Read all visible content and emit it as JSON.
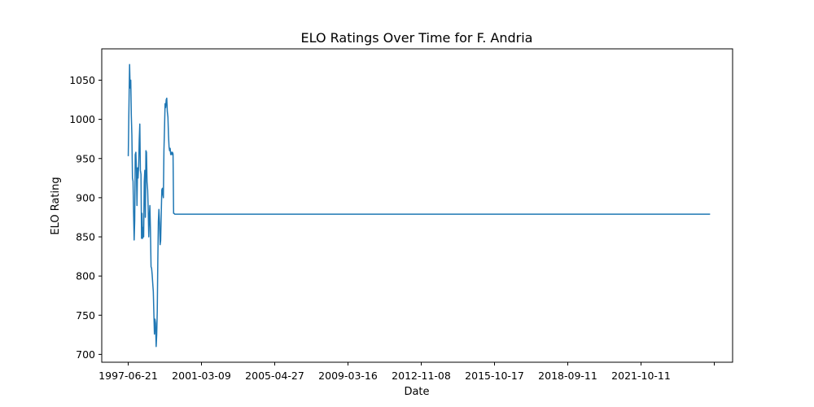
{
  "chart_data": {
    "type": "line",
    "title": "ELO Ratings Over Time for F. Andria",
    "xlabel": "Date",
    "ylabel": "ELO Rating",
    "color": "#1f77b4",
    "grid": false,
    "legend": "none",
    "xlim": [
      "1996-03-01",
      "2027-04-01"
    ],
    "ylim": [
      690,
      1090
    ],
    "x_ticks": [
      "1997-06-21",
      "2001-03-09",
      "2005-04-27",
      "2009-03-16",
      "2012-11-08",
      "2015-10-17",
      "2018-09-11",
      "2021-10-11",
      ""
    ],
    "y_ticks": [
      700,
      750,
      800,
      850,
      900,
      950,
      1000,
      1050
    ],
    "series": [
      {
        "x": [
          "1997-06-21",
          "1997-07-01",
          "1997-07-08",
          "1997-07-15",
          "1997-07-25",
          "1997-08-05",
          "1997-08-15",
          "1997-08-25",
          "1997-09-05",
          "1997-09-15",
          "1997-09-25",
          "1997-10-05",
          "1997-10-15",
          "1997-10-25",
          "1997-11-05",
          "1997-11-15",
          "1997-11-25",
          "1997-12-05",
          "1997-12-15",
          "1997-12-25",
          "1998-01-05",
          "1998-01-15",
          "1998-01-25",
          "1998-02-05",
          "1998-02-15",
          "1998-02-25",
          "1998-03-05",
          "1998-03-15",
          "1998-03-25",
          "1998-04-05",
          "1998-04-15",
          "1998-04-25",
          "1998-05-05",
          "1998-05-15",
          "1998-05-25",
          "1998-06-05",
          "1998-06-15",
          "1998-06-25",
          "1998-07-05",
          "1998-07-15",
          "1998-07-25",
          "1998-08-05",
          "1998-08-15",
          "1998-08-25",
          "1998-09-05",
          "1998-09-15",
          "1998-09-25",
          "1998-10-05",
          "1998-10-15",
          "1998-10-25",
          "1998-11-05",
          "1998-11-15",
          "1998-11-25",
          "1998-12-05",
          "1998-12-15",
          "1998-12-25",
          "1999-01-05",
          "1999-01-15",
          "1999-01-25",
          "1999-02-05",
          "1999-02-15",
          "1999-02-25",
          "1999-03-05",
          "1999-03-15",
          "1999-03-25",
          "1999-04-05",
          "1999-04-15",
          "1999-04-25",
          "1999-05-05",
          "1999-05-15",
          "1999-05-25",
          "1999-06-05",
          "1999-06-15",
          "1999-06-25",
          "1999-07-05",
          "1999-07-15",
          "1999-07-25",
          "1999-08-05",
          "1999-08-15",
          "1999-08-25",
          "1999-09-05",
          "1999-09-15",
          "1999-09-25",
          "1999-10-05",
          "1999-10-15",
          "1999-10-25",
          "1999-11-05",
          "1999-11-15",
          "1999-11-25",
          "1999-12-05",
          "1999-12-15",
          "1999-12-25",
          "2000-01-05",
          "2000-01-15",
          "2000-01-25",
          "2000-02-05",
          "2000-02-15",
          "2000-02-25",
          "2000-03-05",
          "2000-03-15",
          "2000-03-25",
          "2000-04-05",
          "2000-04-15",
          "2000-04-25",
          "2000-05-05",
          "2000-05-15",
          "2000-05-25",
          "2000-06-05",
          "2000-06-15",
          "2000-06-25",
          "2000-07-05",
          "2000-07-15",
          "2000-07-25",
          "2000-08-05",
          "2000-08-15",
          "2000-08-25",
          "2000-09-05",
          "2000-09-15",
          "2000-09-25",
          "2026-02-20"
        ],
        "y": [
          953,
          1003,
          1038,
          1070,
          1040,
          1050,
          1005,
          980,
          925,
          921,
          880,
          846,
          870,
          955,
          958,
          935,
          890,
          938,
          925,
          940,
          975,
          994,
          935,
          930,
          848,
          880,
          848,
          862,
          850,
          920,
          935,
          875,
          960,
          958,
          920,
          910,
          885,
          850,
          875,
          890,
          860,
          812,
          810,
          802,
          790,
          780,
          752,
          726,
          745,
          740,
          710,
          725,
          755,
          820,
          870,
          885,
          868,
          840,
          845,
          880,
          910,
          912,
          905,
          900,
          960,
          990,
          1020,
          1015,
          1025,
          1027,
          1010,
          1003,
          980,
          965,
          960,
          963,
          955,
          958,
          955,
          958,
          956,
          880,
          880,
          879,
          879,
          879,
          879,
          879,
          879,
          879,
          879,
          879,
          879,
          879,
          879,
          879,
          879,
          879,
          879,
          879,
          879,
          879,
          879,
          879,
          879,
          879,
          879,
          879,
          879,
          879,
          879,
          879,
          879,
          879,
          879,
          879,
          879,
          879,
          879,
          879
        ]
      }
    ]
  }
}
